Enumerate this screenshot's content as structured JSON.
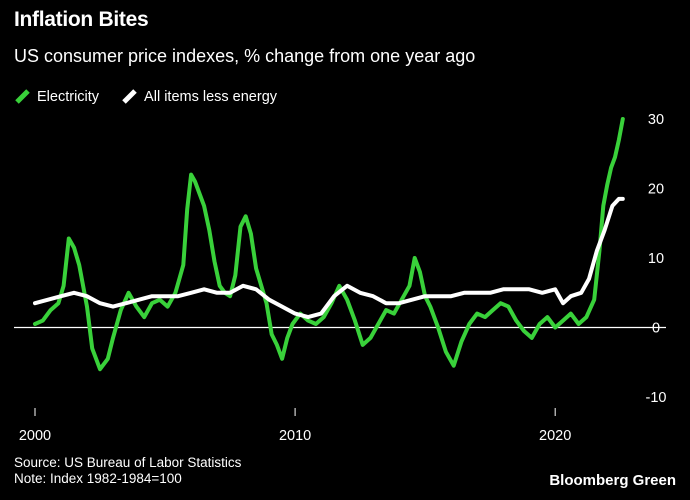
{
  "header": {
    "title": "Inflation Bites",
    "subtitle": "US consumer price indexes, % change from one year ago"
  },
  "footer": {
    "source": "Source: US Bureau of Labor Statistics",
    "note": "Note: Index 1982-1984=100",
    "brand": "Bloomberg Green"
  },
  "colors": {
    "background": "#000000",
    "electricity": "#39d13a",
    "all_items_less_energy": "#ffffff",
    "zero_line": "#ffffff"
  },
  "chart_data": {
    "type": "line",
    "title": "Inflation Bites",
    "subtitle": "US consumer price indexes, % change from one year ago",
    "xlabel": "",
    "ylabel": "",
    "xlim": [
      2000,
      2022.8
    ],
    "ylim": [
      -10,
      30
    ],
    "x_ticks": [
      2000,
      2010,
      2020
    ],
    "y_ticks": [
      30,
      20,
      10,
      0,
      -10
    ],
    "y_axis_side": "right",
    "grid": false,
    "legend_position": "top-left",
    "series": [
      {
        "name": "Electricity",
        "color": "#39d13a",
        "x": [
          2000.0,
          2000.3,
          2000.6,
          2000.9,
          2001.1,
          2001.3,
          2001.5,
          2001.7,
          2002.0,
          2002.2,
          2002.5,
          2002.8,
          2003.0,
          2003.3,
          2003.6,
          2003.9,
          2004.2,
          2004.5,
          2004.8,
          2005.1,
          2005.4,
          2005.7,
          2005.85,
          2006.0,
          2006.15,
          2006.3,
          2006.5,
          2006.7,
          2006.9,
          2007.1,
          2007.3,
          2007.5,
          2007.7,
          2007.9,
          2008.1,
          2008.3,
          2008.5,
          2008.7,
          2008.9,
          2009.1,
          2009.3,
          2009.5,
          2009.7,
          2009.9,
          2010.2,
          2010.5,
          2010.8,
          2011.1,
          2011.4,
          2011.7,
          2012.0,
          2012.3,
          2012.6,
          2012.9,
          2013.2,
          2013.5,
          2013.8,
          2014.1,
          2014.4,
          2014.6,
          2014.8,
          2015.0,
          2015.2,
          2015.5,
          2015.8,
          2016.1,
          2016.4,
          2016.7,
          2017.0,
          2017.3,
          2017.6,
          2017.9,
          2018.2,
          2018.5,
          2018.8,
          2019.1,
          2019.4,
          2019.7,
          2020.0,
          2020.3,
          2020.6,
          2020.9,
          2021.2,
          2021.5,
          2021.7,
          2021.85,
          2022.0,
          2022.15,
          2022.3,
          2022.45,
          2022.6
        ],
        "values": [
          0.5,
          1.0,
          2.5,
          3.5,
          6.0,
          12.8,
          11.5,
          9.0,
          3.0,
          -3.0,
          -6.0,
          -4.5,
          -1.5,
          2.5,
          5.0,
          3.0,
          1.5,
          3.5,
          4.0,
          3.0,
          5.0,
          9.0,
          17.0,
          22.0,
          21.0,
          19.5,
          17.5,
          14.0,
          9.5,
          6.0,
          5.0,
          4.5,
          7.5,
          14.5,
          16.0,
          13.5,
          8.5,
          6.0,
          3.5,
          -1.0,
          -2.5,
          -4.5,
          -1.5,
          0.5,
          2.0,
          1.0,
          0.5,
          1.5,
          3.5,
          6.0,
          4.0,
          1.0,
          -2.5,
          -1.5,
          0.5,
          2.5,
          2.0,
          4.0,
          6.0,
          10.0,
          8.0,
          4.5,
          3.0,
          0.0,
          -3.5,
          -5.5,
          -2.0,
          0.5,
          2.0,
          1.5,
          2.5,
          3.5,
          3.0,
          1.0,
          -0.5,
          -1.5,
          0.5,
          1.5,
          0.0,
          1.0,
          2.0,
          0.5,
          1.5,
          4.0,
          11.0,
          17.5,
          20.5,
          23.0,
          24.5,
          27.0,
          30.0
        ]
      },
      {
        "name": "All items less energy",
        "color": "#ffffff",
        "x": [
          2000.0,
          2000.5,
          2001.0,
          2001.5,
          2002.0,
          2002.5,
          2003.0,
          2003.5,
          2004.0,
          2004.5,
          2005.0,
          2005.5,
          2006.0,
          2006.5,
          2007.0,
          2007.5,
          2008.0,
          2008.5,
          2009.0,
          2009.5,
          2010.0,
          2010.5,
          2011.0,
          2011.5,
          2012.0,
          2012.5,
          2013.0,
          2013.5,
          2014.0,
          2014.5,
          2015.0,
          2015.5,
          2016.0,
          2016.5,
          2017.0,
          2017.5,
          2018.0,
          2018.5,
          2019.0,
          2019.5,
          2020.0,
          2020.3,
          2020.6,
          2021.0,
          2021.3,
          2021.6,
          2021.9,
          2022.2,
          2022.45,
          2022.6
        ],
        "values": [
          3.5,
          4.0,
          4.5,
          5.0,
          4.5,
          3.5,
          3.0,
          3.5,
          4.0,
          4.5,
          4.5,
          4.5,
          5.0,
          5.5,
          5.0,
          5.0,
          6.0,
          5.5,
          4.0,
          3.0,
          2.0,
          1.5,
          2.0,
          4.5,
          6.0,
          5.0,
          4.5,
          3.5,
          3.5,
          4.0,
          4.5,
          4.5,
          4.5,
          5.0,
          5.0,
          5.0,
          5.5,
          5.5,
          5.5,
          5.0,
          5.5,
          3.5,
          4.5,
          5.0,
          7.0,
          11.0,
          14.0,
          17.5,
          18.5,
          18.5
        ]
      }
    ]
  }
}
